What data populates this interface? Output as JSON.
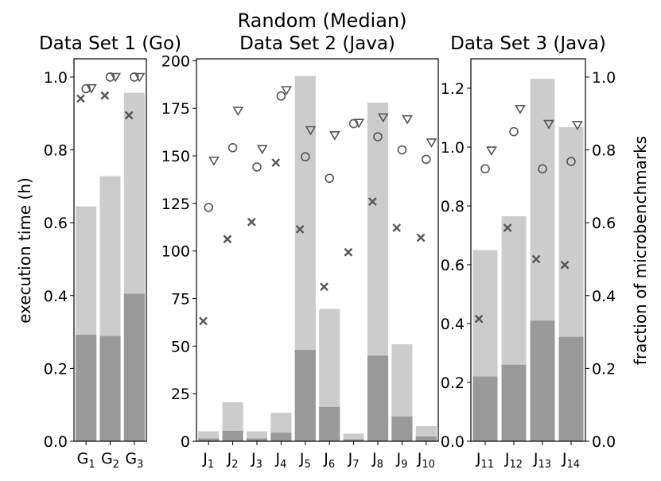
{
  "figure_title": "Random (Median)",
  "left_axis_label": "execution time (h)",
  "right_axis_label": "fraction of microbenchmarks",
  "chart_data": [
    {
      "type": "bar",
      "title": "Data Set 1 (Go)",
      "categories": [
        [
          "G",
          "1"
        ],
        [
          "G",
          "2"
        ],
        [
          "G",
          "3"
        ]
      ],
      "ylabel": "execution time (h)",
      "ylim": [
        0,
        1.05
      ],
      "yticks": [
        0.0,
        0.2,
        0.4,
        0.6,
        0.8,
        1.0
      ],
      "ytick_labels": [
        "0.0",
        "0.2",
        "0.4",
        "0.6",
        "0.8",
        "1.0"
      ],
      "bars_total": [
        0.645,
        0.728,
        0.957
      ],
      "bars_dark": [
        0.292,
        0.289,
        0.405
      ],
      "fraction_scale": [
        0,
        1.05
      ],
      "markers": {
        "x": [
          0.941,
          0.949,
          0.895
        ],
        "circle": [
          0.968,
          1.0,
          1.0
        ],
        "triangle": [
          0.969,
          1.0,
          1.0
        ]
      },
      "colors": {
        "light": "#cccccc",
        "dark": "#999999",
        "marker": "#555555"
      }
    },
    {
      "type": "bar",
      "title": "Data Set 2 (Java)",
      "categories": [
        [
          "J",
          "1"
        ],
        [
          "J",
          "2"
        ],
        [
          "J",
          "3"
        ],
        [
          "J",
          "4"
        ],
        [
          "J",
          "5"
        ],
        [
          "J",
          "6"
        ],
        [
          "J",
          "7"
        ],
        [
          "J",
          "8"
        ],
        [
          "J",
          "9"
        ],
        [
          "J",
          "10"
        ]
      ],
      "ylim": [
        0,
        201
      ],
      "yticks": [
        0,
        25,
        50,
        75,
        100,
        125,
        150,
        175,
        200
      ],
      "ytick_labels": [
        "0",
        "25",
        "50",
        "75",
        "100",
        "125",
        "150",
        "175",
        "200"
      ],
      "bars_total": [
        5.2,
        20.5,
        5.2,
        15,
        192,
        69.5,
        4,
        178,
        51,
        8
      ],
      "bars_dark": [
        1.5,
        5.5,
        1.5,
        4.5,
        48,
        18,
        1,
        45,
        13,
        2.5
      ],
      "fraction_scale": [
        0,
        1.05
      ],
      "markers": {
        "x": [
          0.33,
          0.555,
          0.602,
          0.765,
          0.582,
          0.424,
          0.519,
          0.658,
          0.586,
          0.559
        ],
        "circle": [
          0.642,
          0.806,
          0.753,
          0.948,
          0.781,
          0.722,
          0.872,
          0.836,
          0.8,
          0.774
        ],
        "triangle": [
          0.77,
          0.907,
          0.802,
          0.964,
          0.854,
          0.84,
          0.874,
          0.889,
          0.884,
          0.82
        ]
      },
      "colors": {
        "light": "#cccccc",
        "dark": "#999999",
        "marker": "#555555"
      }
    },
    {
      "type": "bar",
      "title": "Data Set 3 (Java)",
      "categories": [
        [
          "J",
          "11"
        ],
        [
          "J",
          "12"
        ],
        [
          "J",
          "13"
        ],
        [
          "J",
          "14"
        ]
      ],
      "ylim": [
        0,
        1.3
      ],
      "yticks": [
        0.0,
        0.2,
        0.4,
        0.6,
        0.8,
        1.0,
        1.2
      ],
      "ytick_labels": [
        "0.0",
        "0.2",
        "0.4",
        "0.6",
        "0.8",
        "1.0",
        "1.2"
      ],
      "y2ticks": [
        0.0,
        0.2,
        0.4,
        0.6,
        0.8,
        1.0
      ],
      "y2tick_labels": [
        "0.0",
        "0.2",
        "0.4",
        "0.6",
        "0.8",
        "1.0"
      ],
      "ylabel_right": "fraction of microbenchmarks",
      "bars_total": [
        0.65,
        0.765,
        1.232,
        1.068
      ],
      "bars_dark": [
        0.22,
        0.26,
        0.41,
        0.355
      ],
      "fraction_scale": [
        0,
        1.05
      ],
      "markers": {
        "x": [
          0.336,
          0.586,
          0.5,
          0.484
        ],
        "circle": [
          0.748,
          0.85,
          0.748,
          0.768
        ],
        "triangle": [
          0.798,
          0.912,
          0.871,
          0.868
        ]
      },
      "colors": {
        "light": "#cccccc",
        "dark": "#999999",
        "marker": "#555555"
      }
    }
  ]
}
